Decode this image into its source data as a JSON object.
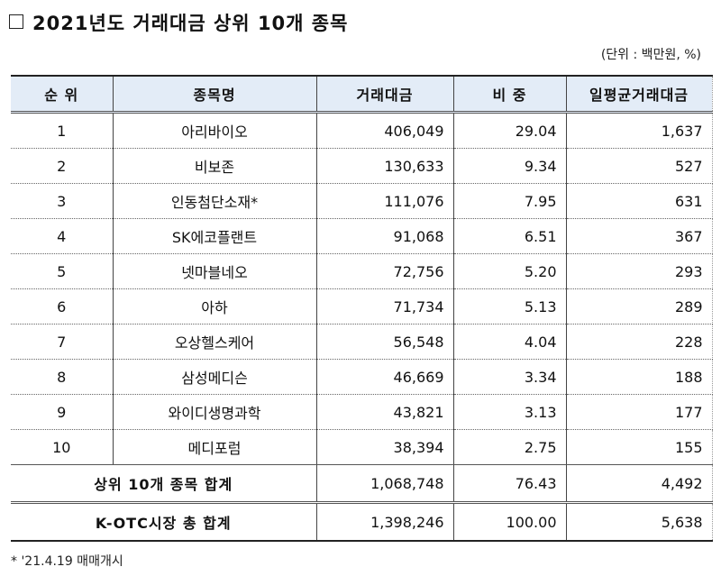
{
  "title": "2021년도 거래대금 상위 10개 종목",
  "title_icon": "empty-square",
  "unit_note": "(단위 : 백만원, %)",
  "table": {
    "headers": [
      "순 위",
      "종목명",
      "거래대금",
      "비 중",
      "일평균거래대금"
    ],
    "rows": [
      {
        "rank": "1",
        "name": "아리바이오",
        "amount": "406,049",
        "share": "29.04",
        "daily_avg": "1,637"
      },
      {
        "rank": "2",
        "name": "비보존",
        "amount": "130,633",
        "share": "9.34",
        "daily_avg": "527"
      },
      {
        "rank": "3",
        "name": "인동첨단소재*",
        "amount": "111,076",
        "share": "7.95",
        "daily_avg": "631"
      },
      {
        "rank": "4",
        "name": "SK에코플랜트",
        "amount": "91,068",
        "share": "6.51",
        "daily_avg": "367"
      },
      {
        "rank": "5",
        "name": "넷마블네오",
        "amount": "72,756",
        "share": "5.20",
        "daily_avg": "293"
      },
      {
        "rank": "6",
        "name": "아하",
        "amount": "71,734",
        "share": "5.13",
        "daily_avg": "289"
      },
      {
        "rank": "7",
        "name": "오상헬스케어",
        "amount": "56,548",
        "share": "4.04",
        "daily_avg": "228"
      },
      {
        "rank": "8",
        "name": "삼성메디슨",
        "amount": "46,669",
        "share": "3.34",
        "daily_avg": "188"
      },
      {
        "rank": "9",
        "name": "와이디생명과학",
        "amount": "43,821",
        "share": "3.13",
        "daily_avg": "177"
      },
      {
        "rank": "10",
        "name": "메디포럼",
        "amount": "38,394",
        "share": "2.75",
        "daily_avg": "155"
      }
    ],
    "top10_total": {
      "label": "상위 10개 종목 합계",
      "amount": "1,068,748",
      "share": "76.43",
      "daily_avg": "4,492"
    },
    "market_total": {
      "label": "K-OTC시장 총 합계",
      "amount": "1,398,246",
      "share": "100.00",
      "daily_avg": "5,638"
    }
  },
  "footnote": "* '21.4.19 매매개시",
  "colors": {
    "header_bg": "#e3ecf7",
    "border": "#222222"
  }
}
